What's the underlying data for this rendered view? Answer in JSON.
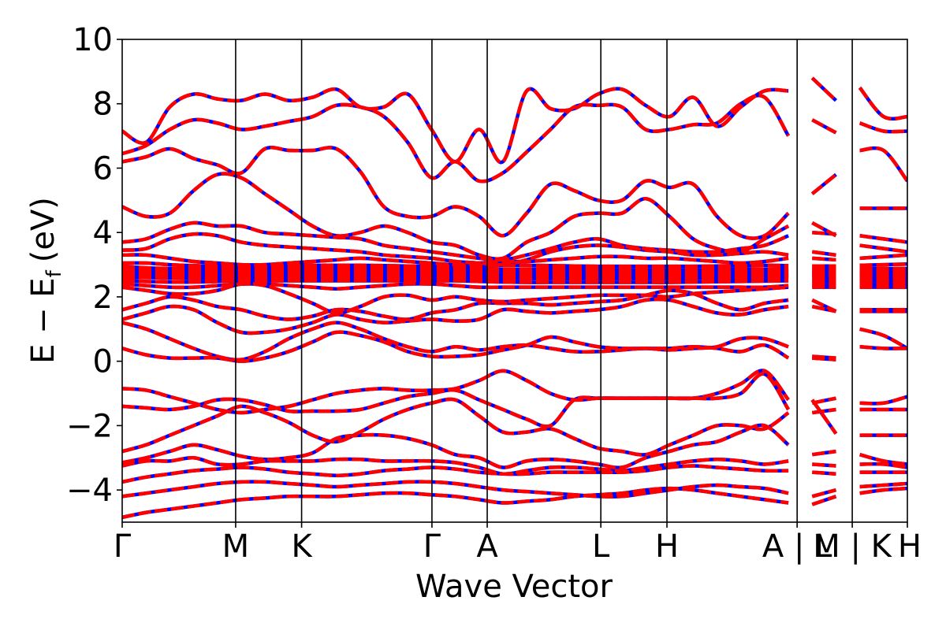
{
  "chart_data": {
    "type": "line",
    "title": "",
    "xlabel": "Wave Vector",
    "ylabel_main": "E − E",
    "ylabel_sub": "f",
    "ylabel_unit": "(eV)",
    "ylim": [
      -5,
      10
    ],
    "yticks": [
      -4,
      -2,
      0,
      2,
      4,
      6,
      8,
      10
    ],
    "grid": false,
    "legend": "none",
    "xlim": [
      0,
      1
    ],
    "kpoint_labels": [
      {
        "label": "Γ",
        "x": 0.0
      },
      {
        "label": "M",
        "x": 0.1445
      },
      {
        "label": "K",
        "x": 0.2285
      },
      {
        "label": "Γ",
        "x": 0.3945
      },
      {
        "label": "A",
        "x": 0.4649
      },
      {
        "label": "L",
        "x": 0.6096
      },
      {
        "label": "H",
        "x": 0.6938
      },
      {
        "label": "A | L",
        "x": 0.8596
      },
      {
        "label": "M | K",
        "x": 0.9298
      },
      {
        "label": "H",
        "x": 1.0
      }
    ],
    "segment_breaks": [
      0.8596,
      0.9298
    ],
    "series": [
      {
        "name": "",
        "style": "solid",
        "color": "#0000ff",
        "bands": [
          [
            7.15,
            6.8,
            7.9,
            8.3,
            8.15,
            8.1,
            8.3,
            8.1,
            8.2,
            8.45,
            7.9,
            7.9,
            8.3,
            7.2,
            6.2,
            7.2,
            6.2,
            8.4,
            7.85,
            7.85,
            8.3,
            8.45,
            7.95,
            7.6,
            8.2,
            7.3,
            7.9,
            8.4,
            8.4,
            8.8,
            8.1,
            8.5,
            7.6,
            7.6
          ],
          [
            6.45,
            6.7,
            7.2,
            7.5,
            7.4,
            7.2,
            7.3,
            7.45,
            7.6,
            7.95,
            7.9,
            7.6,
            6.8,
            5.7,
            6.2,
            5.6,
            5.85,
            6.5,
            7.2,
            7.9,
            7.95,
            7.9,
            7.2,
            7.2,
            7.35,
            7.4,
            8.0,
            8.2,
            7.0,
            7.5,
            7.1,
            7.4,
            7.15,
            7.15
          ],
          [
            6.2,
            6.35,
            6.6,
            6.3,
            6.1,
            5.85,
            6.6,
            6.55,
            6.55,
            6.6,
            5.9,
            4.8,
            4.5,
            4.5,
            4.8,
            4.5,
            3.9,
            4.6,
            5.5,
            5.3,
            5.0,
            5.0,
            5.6,
            5.4,
            5.5,
            4.5,
            3.9,
            3.9,
            4.6,
            5.2,
            5.8,
            6.55,
            6.55,
            5.6
          ],
          [
            4.8,
            4.5,
            4.6,
            5.3,
            5.8,
            5.7,
            5.2,
            4.7,
            4.2,
            3.9,
            4.0,
            4.2,
            4.0,
            3.7,
            3.6,
            3.3,
            3.2,
            3.7,
            4.0,
            4.5,
            4.6,
            4.6,
            5.05,
            4.5,
            3.8,
            3.5,
            3.4,
            3.8,
            4.2,
            4.3,
            3.9,
            4.75,
            4.75,
            4.75
          ],
          [
            3.7,
            3.8,
            4.1,
            4.3,
            4.2,
            4.2,
            4.0,
            3.95,
            3.9,
            3.85,
            3.8,
            3.6,
            3.5,
            3.4,
            3.3,
            3.2,
            3.15,
            3.3,
            3.5,
            3.7,
            3.8,
            3.6,
            3.5,
            3.45,
            3.4,
            3.4,
            3.5,
            3.6,
            3.9,
            4.0,
            3.95,
            3.9,
            3.8,
            3.7
          ],
          [
            3.45,
            3.5,
            3.8,
            3.95,
            3.9,
            3.7,
            3.6,
            3.55,
            3.5,
            3.45,
            3.4,
            3.3,
            3.25,
            3.2,
            3.1,
            3.05,
            3.0,
            3.15,
            3.4,
            3.55,
            3.6,
            3.55,
            3.45,
            3.4,
            3.3,
            3.3,
            3.35,
            3.4,
            3.3,
            3.4,
            3.3,
            3.6,
            3.5,
            3.4
          ],
          [
            3.3,
            3.3,
            3.2,
            3.1,
            3.05,
            3.0,
            3.0,
            3.05,
            3.1,
            3.15,
            3.2,
            3.15,
            3.1,
            3.05,
            3.0,
            3.05,
            3.1,
            3.1,
            3.15,
            3.2,
            3.25,
            3.25,
            3.2,
            3.2,
            3.15,
            3.1,
            3.05,
            3.1,
            3.2,
            3.2,
            3.15,
            3.2,
            3.25,
            3.3
          ],
          [
            3.05,
            3.05,
            3.0,
            2.97,
            2.95,
            2.95,
            2.95,
            2.97,
            2.98,
            2.98,
            2.98,
            2.97,
            2.96,
            2.96,
            2.96,
            2.97,
            2.98,
            2.98,
            2.97,
            2.96,
            2.95,
            2.95,
            2.95,
            2.95,
            2.95,
            2.96,
            2.97,
            2.98,
            2.97,
            2.96,
            2.96,
            2.98,
            3.0,
            3.02
          ],
          [
            2.95,
            2.9,
            2.88,
            2.88,
            2.9,
            2.9,
            2.9,
            2.9,
            2.9,
            2.9,
            2.9,
            2.9,
            2.9,
            2.9,
            2.9,
            2.88,
            2.86,
            2.86,
            2.86,
            2.86,
            2.85,
            2.84,
            2.84,
            2.84,
            2.84,
            2.85,
            2.86,
            2.86,
            2.87,
            2.88,
            2.88,
            2.88,
            2.88,
            2.88
          ],
          [
            2.85,
            2.84,
            2.84,
            2.84,
            2.85,
            2.85,
            2.85,
            2.85,
            2.85,
            2.84,
            2.84,
            2.83,
            2.83,
            2.83,
            2.83,
            2.82,
            2.8,
            2.8,
            2.8,
            2.78,
            2.77,
            2.77,
            2.77,
            2.77,
            2.78,
            2.78,
            2.79,
            2.8,
            2.81,
            2.82,
            2.82,
            2.82,
            2.82,
            2.82
          ],
          [
            2.8,
            2.79,
            2.78,
            2.78,
            2.78,
            2.79,
            2.8,
            2.8,
            2.8,
            2.79,
            2.78,
            2.78,
            2.78,
            2.78,
            2.78,
            2.76,
            2.74,
            2.73,
            2.72,
            2.71,
            2.7,
            2.7,
            2.7,
            2.7,
            2.71,
            2.72,
            2.73,
            2.74,
            2.75,
            2.76,
            2.76,
            2.76,
            2.76,
            2.76
          ],
          [
            2.75,
            2.74,
            2.73,
            2.72,
            2.72,
            2.72,
            2.72,
            2.72,
            2.72,
            2.72,
            2.72,
            2.72,
            2.72,
            2.72,
            2.72,
            2.7,
            2.68,
            2.67,
            2.66,
            2.65,
            2.64,
            2.64,
            2.64,
            2.64,
            2.65,
            2.66,
            2.67,
            2.68,
            2.69,
            2.7,
            2.7,
            2.7,
            2.7,
            2.7
          ],
          [
            2.7,
            2.68,
            2.66,
            2.65,
            2.65,
            2.66,
            2.66,
            2.66,
            2.66,
            2.66,
            2.66,
            2.66,
            2.66,
            2.66,
            2.66,
            2.64,
            2.62,
            2.62,
            2.61,
            2.6,
            2.6,
            2.6,
            2.6,
            2.6,
            2.61,
            2.62,
            2.63,
            2.64,
            2.65,
            2.66,
            2.66,
            2.66,
            2.66,
            2.66
          ],
          [
            2.6,
            2.6,
            2.58,
            2.57,
            2.58,
            2.6,
            2.6,
            2.6,
            2.6,
            2.6,
            2.6,
            2.6,
            2.6,
            2.6,
            2.6,
            2.58,
            2.56,
            2.56,
            2.56,
            2.56,
            2.56,
            2.56,
            2.56,
            2.56,
            2.57,
            2.58,
            2.58,
            2.59,
            2.6,
            2.6,
            2.6,
            2.6,
            2.6,
            2.6
          ],
          [
            2.5,
            2.48,
            2.46,
            2.46,
            2.48,
            2.5,
            2.5,
            2.5,
            2.5,
            2.5,
            2.5,
            2.5,
            2.5,
            2.5,
            2.5,
            2.48,
            2.46,
            2.45,
            2.45,
            2.45,
            2.45,
            2.45,
            2.45,
            2.45,
            2.46,
            2.47,
            2.48,
            2.49,
            2.5,
            2.5,
            2.5,
            2.5,
            2.5,
            2.5
          ],
          [
            2.4,
            2.35,
            2.3,
            2.3,
            2.35,
            2.4,
            2.4,
            2.35,
            2.3,
            2.25,
            2.3,
            2.35,
            2.4,
            2.4,
            2.35,
            2.3,
            2.3,
            2.3,
            2.3,
            2.3,
            2.3,
            2.3,
            2.3,
            2.3,
            2.3,
            2.3,
            2.3,
            2.3,
            2.35,
            2.4,
            2.4,
            2.4,
            2.4,
            2.4
          ],
          [
            2.3,
            2.2,
            2.1,
            2.1,
            2.2,
            2.4,
            2.35,
            2.1,
            1.8,
            1.5,
            1.7,
            2.0,
            2.05,
            1.9,
            2.0,
            1.9,
            1.85,
            1.9,
            1.95,
            2.0,
            2.05,
            2.05,
            2.05,
            2.0,
            2.1,
            2.15,
            2.2,
            2.25,
            2.3,
            2.3,
            2.3,
            2.3,
            2.3,
            2.3
          ],
          [
            1.6,
            1.8,
            2.0,
            1.9,
            1.7,
            1.6,
            1.4,
            1.3,
            1.4,
            1.6,
            1.55,
            1.4,
            1.3,
            1.5,
            1.6,
            1.8,
            1.8,
            1.8,
            1.75,
            1.8,
            1.85,
            1.9,
            2.05,
            2.2,
            2.1,
            1.8,
            1.6,
            1.8,
            1.9,
            1.9,
            1.55,
            1.6,
            1.6,
            1.6
          ],
          [
            1.3,
            1.5,
            1.7,
            1.6,
            1.2,
            0.9,
            0.9,
            1.0,
            1.2,
            1.45,
            1.3,
            1.2,
            1.25,
            1.3,
            1.25,
            1.3,
            1.6,
            1.55,
            1.5,
            1.55,
            1.6,
            1.7,
            1.9,
            1.9,
            1.7,
            1.5,
            1.45,
            1.6,
            1.7,
            1.7,
            1.55,
            1.55,
            1.55,
            1.55
          ],
          [
            1.2,
            1.0,
            0.7,
            0.4,
            0.15,
            0.05,
            0.3,
            0.7,
            1.0,
            1.2,
            1.0,
            0.7,
            0.45,
            0.3,
            0.45,
            0.35,
            0.45,
            0.5,
            0.4,
            0.3,
            0.3,
            0.35,
            0.4,
            0.35,
            0.4,
            0.45,
            0.7,
            0.7,
            0.45,
            0.15,
            0.1,
            1.0,
            0.8,
            0.4
          ],
          [
            0.4,
            0.2,
            0.1,
            0.1,
            0.1,
            0.0,
            0.1,
            0.3,
            0.6,
            0.9,
            0.8,
            0.6,
            0.3,
            0.15,
            0.15,
            0.2,
            0.35,
            0.5,
            0.75,
            0.6,
            0.45,
            0.4,
            0.4,
            0.4,
            0.45,
            0.4,
            0.3,
            0.5,
            0.1,
            0.1,
            0.05,
            0.45,
            0.4,
            0.4
          ],
          [
            -0.85,
            -0.9,
            -1.1,
            -1.3,
            -1.5,
            -1.6,
            -1.5,
            -1.4,
            -1.2,
            -1.0,
            -0.9,
            -0.85,
            -0.9,
            -0.9,
            -0.85,
            -0.6,
            -0.3,
            -0.6,
            -1.0,
            -1.2,
            -1.15,
            -1.15,
            -1.15,
            -1.15,
            -1.15,
            -1.0,
            -0.7,
            -0.3,
            -1.2,
            -1.3,
            -1.15,
            -1.3,
            -1.3,
            -1.1
          ],
          [
            -1.4,
            -1.45,
            -1.5,
            -1.4,
            -1.2,
            -1.2,
            -1.35,
            -1.55,
            -1.55,
            -1.55,
            -1.5,
            -1.3,
            -1.1,
            -1.0,
            -0.9,
            -1.2,
            -1.5,
            -1.8,
            -2.0,
            -1.2,
            -1.15,
            -1.15,
            -1.15,
            -1.15,
            -1.15,
            -1.15,
            -1.0,
            -0.4,
            -1.5,
            -1.6,
            -1.5,
            -1.5,
            -1.5,
            -1.5
          ],
          [
            -2.8,
            -2.6,
            -2.3,
            -2.0,
            -1.7,
            -1.4,
            -1.6,
            -1.9,
            -2.3,
            -2.5,
            -2.2,
            -1.8,
            -1.5,
            -1.3,
            -1.2,
            -1.7,
            -2.2,
            -2.2,
            -2.1,
            -2.4,
            -2.7,
            -2.8,
            -2.9,
            -2.6,
            -2.3,
            -2.0,
            -2.0,
            -2.1,
            -1.6,
            -1.2,
            -2.25,
            -2.3,
            -2.3,
            -2.3
          ],
          [
            -3.15,
            -3.0,
            -2.8,
            -2.6,
            -2.75,
            -2.95,
            -3.05,
            -3.0,
            -2.85,
            -2.4,
            -2.3,
            -2.3,
            -2.4,
            -2.6,
            -2.9,
            -3.0,
            -3.3,
            -3.1,
            -3.05,
            -3.1,
            -3.2,
            -3.3,
            -3.0,
            -2.8,
            -2.6,
            -2.5,
            -2.2,
            -2.0,
            -2.6,
            -2.9,
            -2.8,
            -2.9,
            -3.1,
            -3.2
          ],
          [
            -3.25,
            -3.1,
            -3.1,
            -3.0,
            -3.2,
            -3.2,
            -3.1,
            -3.1,
            -3.1,
            -3.05,
            -3.05,
            -3.1,
            -3.1,
            -3.1,
            -3.15,
            -3.3,
            -3.5,
            -3.4,
            -3.3,
            -3.3,
            -3.35,
            -3.4,
            -3.3,
            -3.2,
            -3.1,
            -3.05,
            -3.1,
            -3.2,
            -3.1,
            -3.2,
            -3.25,
            -3.2,
            -3.2,
            -3.3
          ],
          [
            -3.75,
            -3.6,
            -3.5,
            -3.4,
            -3.35,
            -3.3,
            -3.35,
            -3.45,
            -3.5,
            -3.55,
            -3.5,
            -3.4,
            -3.35,
            -3.3,
            -3.35,
            -3.45,
            -3.5,
            -3.5,
            -3.45,
            -3.45,
            -3.45,
            -3.45,
            -3.4,
            -3.3,
            -3.25,
            -3.3,
            -3.35,
            -3.4,
            -3.4,
            -3.45,
            -3.5,
            -3.45,
            -3.45,
            -3.45
          ],
          [
            -4.2,
            -4.1,
            -4.0,
            -3.9,
            -3.8,
            -3.75,
            -3.75,
            -3.8,
            -3.85,
            -3.9,
            -3.85,
            -3.8,
            -3.75,
            -3.75,
            -3.8,
            -3.9,
            -4.0,
            -4.05,
            -4.1,
            -4.15,
            -4.2,
            -4.2,
            -4.1,
            -4.0,
            -3.9,
            -3.85,
            -3.9,
            -3.95,
            -4.1,
            -4.2,
            -4.0,
            -3.9,
            -3.85,
            -3.8
          ],
          [
            -4.85,
            -4.7,
            -4.6,
            -4.5,
            -4.4,
            -4.3,
            -4.25,
            -4.2,
            -4.2,
            -4.2,
            -4.15,
            -4.1,
            -4.1,
            -4.15,
            -4.2,
            -4.3,
            -4.4,
            -4.35,
            -4.3,
            -4.2,
            -4.15,
            -4.1,
            -4.0,
            -3.95,
            -4.0,
            -4.1,
            -4.2,
            -4.3,
            -4.4,
            -4.45,
            -4.2,
            -4.1,
            -4.0,
            -3.95
          ]
        ]
      },
      {
        "name": "",
        "style": "dashed",
        "color": "#ff0000",
        "same_as_solid": true
      }
    ]
  }
}
